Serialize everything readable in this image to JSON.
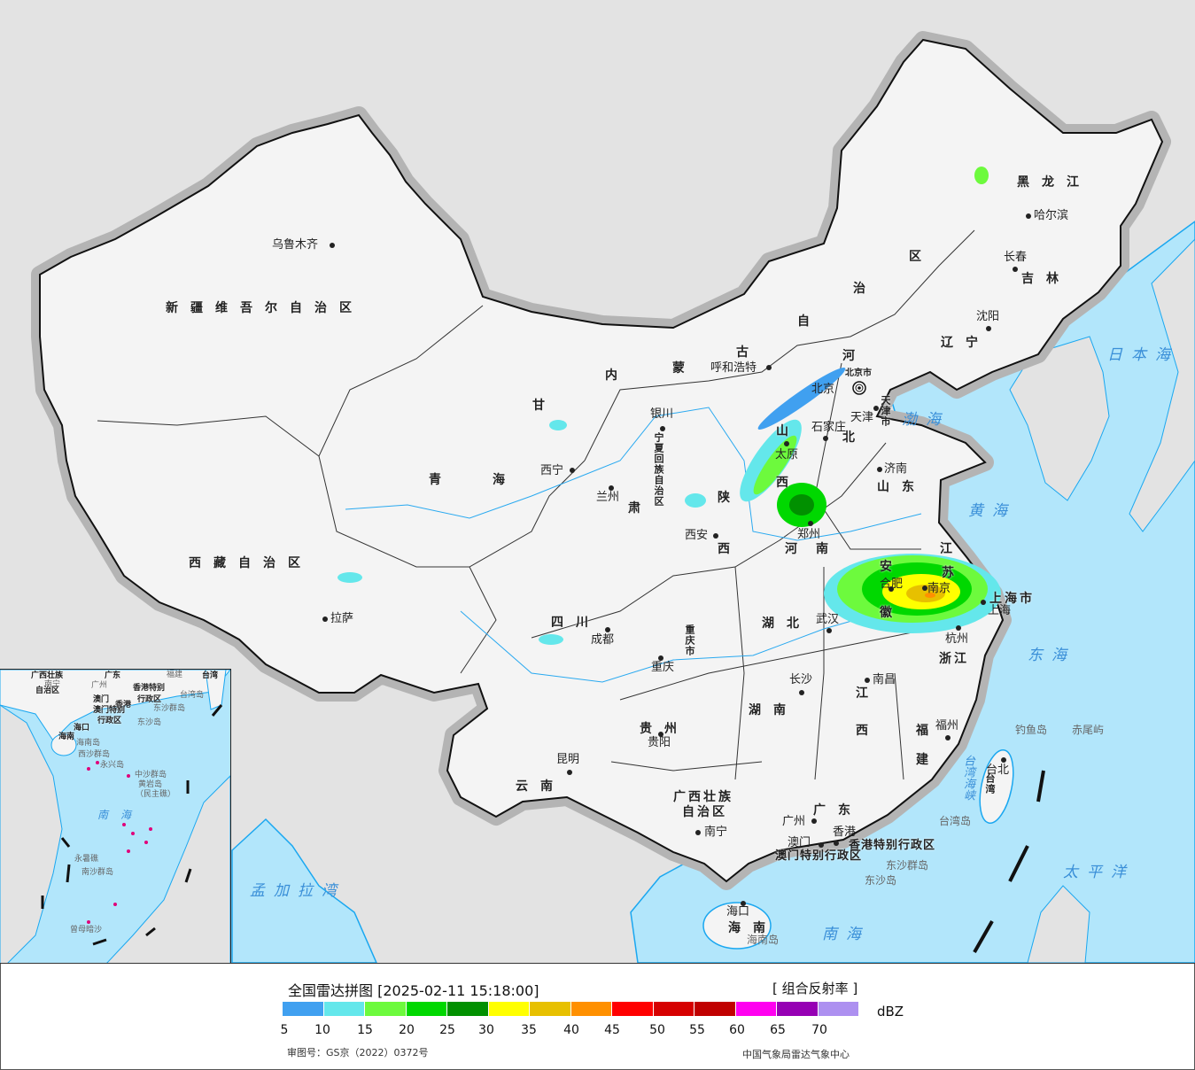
{
  "legend": {
    "title": "全国雷达拼图 [2025-02-11 15:18:00]",
    "product": "[ 组合反射率 ]",
    "unit": "dBZ",
    "colors": [
      "#40a0f0",
      "#64e7eb",
      "#6dfa3d",
      "#00d800",
      "#019000",
      "#ffff00",
      "#e7c000",
      "#ff9000",
      "#ff0000",
      "#d60000",
      "#c00000",
      "#ff00f0",
      "#9600b4",
      "#ad90f0"
    ],
    "ticks": [
      "5",
      "10",
      "15",
      "20",
      "25",
      "30",
      "35",
      "40",
      "45",
      "50",
      "55",
      "60",
      "65",
      "70"
    ],
    "approval_number": "审图号：GS京（2022）0372号",
    "credit": "中国气象局雷达气象中心"
  },
  "map": {
    "provinces": {
      "xinjiang": "新疆维吾尔自治区",
      "xizang": "西藏自治区",
      "qing": "青",
      "hai": "海",
      "gan": "甘",
      "su": "肃",
      "nei": "内",
      "meng": "蒙",
      "gu": "古",
      "zi": "自",
      "zhi": "治",
      "qu": "区",
      "heilongjiang": "黑龙江",
      "jilin": "吉林",
      "liaoning": "辽宁",
      "he_bei1": "河",
      "he_bei2": "北",
      "shan_xi1": "山",
      "shan_xi2": "西",
      "shandong": "山东",
      "shaan1": "陕",
      "shaan2": "西",
      "henan1": "河",
      "henan2": "南",
      "jiangsu1": "江",
      "jiangsu2": "苏",
      "anhui1": "安",
      "anhui2": "徽",
      "hubei": "湖北",
      "sichuan": "四川",
      "chongqing": "重庆市",
      "zhejiang": "浙江",
      "jiangxi1": "江",
      "jiangxi2": "西",
      "hunan": "湖南",
      "guizhou": "贵州",
      "yunnan": "云南",
      "fujian1": "福",
      "fujian2": "建",
      "guangxi1": "广西壮族",
      "guangxi2": "自治区",
      "guangdong": "广东",
      "hainan": "海南",
      "taiwan": "台湾",
      "shanghai": "上海市",
      "ningxia": "宁夏回族自治区",
      "beijing_city": "北京市",
      "tianjin_city": "天津市"
    },
    "cities": {
      "urumqi": "乌鲁木齐",
      "lhasa": "拉萨",
      "xining": "西宁",
      "lanzhou": "兰州",
      "yinchuan": "银川",
      "chengdu": "成都",
      "chongqing": "重庆",
      "guiyang": "贵阳",
      "kunming": "昆明",
      "nanning": "南宁",
      "xian": "西安",
      "hohhot": "呼和浩特",
      "taiyuan": "太原",
      "shijiazhuang": "石家庄",
      "beijing": "北京",
      "tianjin": "天津",
      "jinan": "济南",
      "zhengzhou": "郑州",
      "wuhan": "武汉",
      "hefei": "合肥",
      "nanjing": "南京",
      "shanghai": "上海",
      "hangzhou": "杭州",
      "nanchang": "南昌",
      "changsha": "长沙",
      "fuzhou": "福州",
      "taipei": "台北",
      "guangzhou": "广州",
      "hongkong": "香港",
      "macau": "澳门",
      "haikou": "海口",
      "harbin": "哈尔滨",
      "changchun": "长春",
      "shenyang": "沈阳"
    },
    "seas": {
      "japan_sea": "日本海",
      "bohai": "渤海",
      "yellow_sea": "黄海",
      "east_sea": "东海",
      "pacific": "太平洋",
      "south_sea": "南海",
      "bengal": "孟加拉湾",
      "taiwan_strait": "台湾海峡"
    },
    "islands": {
      "diaoyu": "钓鱼岛",
      "chiwei": "赤尾屿",
      "taiwan_island": "台湾岛",
      "dongsha_islands": "东沙群岛",
      "dongsha_island": "东沙岛",
      "hainan_island": "海南岛"
    },
    "special": {
      "hk_sar": "香港特别行政区",
      "macau_sar": "澳门特别行政区"
    }
  },
  "inset": {
    "labels": {
      "guangxi": "广西壮族",
      "guangxi2": "自治区",
      "nanning": "南宁",
      "guangdong": "广东",
      "guangzhou": "广州",
      "fujian": "福建",
      "taiwan": "台湾",
      "macau": "澳门",
      "hongkong": "香港",
      "hk_sar": "香港特别",
      "hk_sar2": "行政区",
      "macau_sar": "澳门特别",
      "macau_sar2": "行政区",
      "taiwan_island": "台湾岛",
      "dongsha_islands": "东沙群岛",
      "dongsha_island": "东沙岛",
      "haikou": "海口",
      "hainan": "海南",
      "hainan_island": "海南岛",
      "xisha": "西沙群岛",
      "yongxing": "永兴岛",
      "zhongsha": "中沙群岛",
      "huangyan": "黄岩岛",
      "huangyan2": "（民主礁）",
      "south_sea": "南海",
      "yongshu": "永暑礁",
      "nansha": "南沙群岛",
      "zengmu": "曾母暗沙"
    }
  }
}
